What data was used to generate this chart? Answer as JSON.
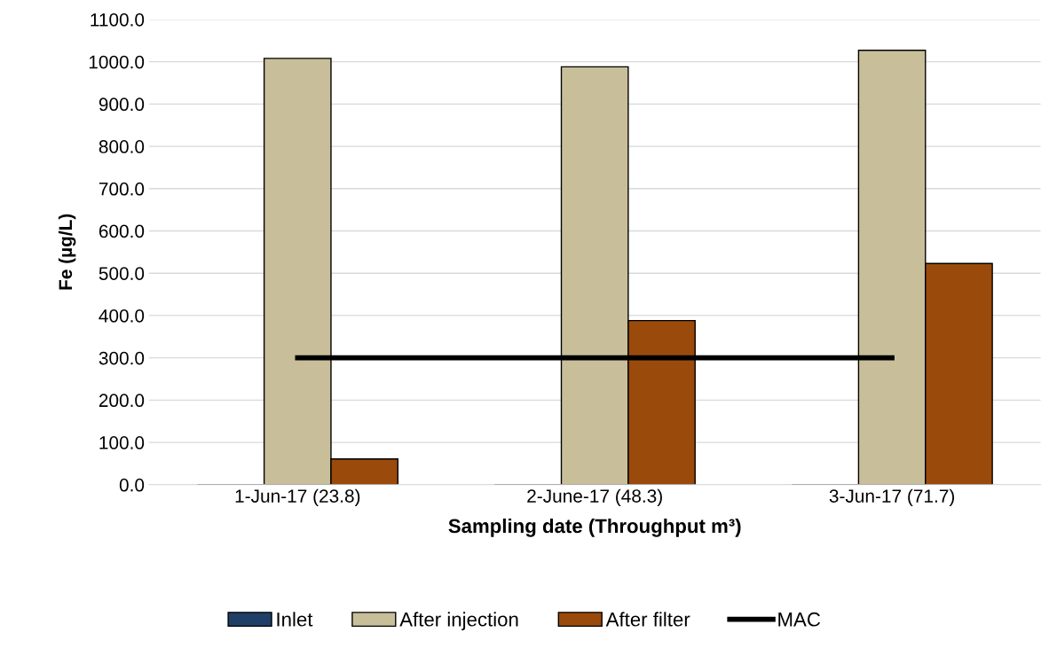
{
  "chart_data": {
    "type": "bar",
    "xlabel": "Sampling date (Throughput m³)",
    "ylabel": "Fe (µg/L)",
    "categories": [
      "1-Jun-17 (23.8)",
      "2-June-17 (48.3)",
      "3-Jun-17 (71.7)"
    ],
    "series": [
      {
        "name": "Inlet",
        "color": "#1f3f66",
        "values": [
          null,
          null,
          null
        ]
      },
      {
        "name": "After injection",
        "color": "#c8bf9a",
        "values": [
          1008,
          988,
          1027
        ]
      },
      {
        "name": "After filter",
        "color": "#9a4a0a",
        "values": [
          61,
          388,
          523
        ]
      },
      {
        "name": "MAC",
        "type": "line",
        "color": "#000000",
        "values": [
          300,
          300,
          300
        ]
      }
    ],
    "ylim": [
      0,
      1100
    ],
    "yticks": [
      {
        "value": 0,
        "label": "0.0"
      },
      {
        "value": 100,
        "label": "100.0"
      },
      {
        "value": 200,
        "label": "200.0"
      },
      {
        "value": 300,
        "label": "300.0"
      },
      {
        "value": 400,
        "label": "400.0"
      },
      {
        "value": 500,
        "label": "500.0"
      },
      {
        "value": 600,
        "label": "600.0"
      },
      {
        "value": 700,
        "label": "700.0"
      },
      {
        "value": 800,
        "label": "800.0"
      },
      {
        "value": 900,
        "label": "900.0"
      },
      {
        "value": 1000,
        "label": "1000.0"
      },
      {
        "value": 1100,
        "label": "1100.0"
      }
    ],
    "grid": "y",
    "legend": "bottom",
    "marker": "none",
    "line_style": "solid"
  }
}
